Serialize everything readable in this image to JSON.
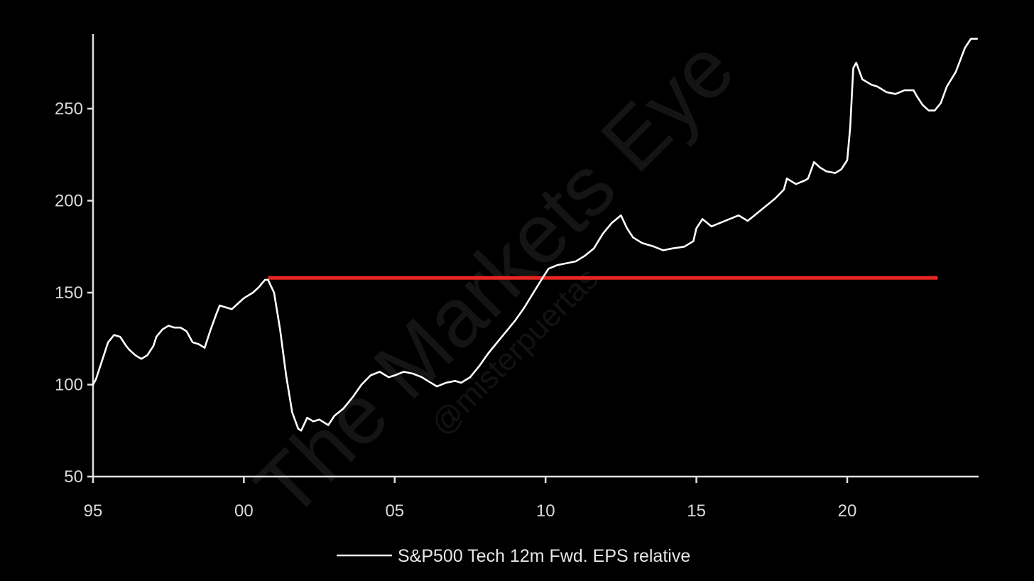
{
  "watermark": {
    "main": "The Markets Eye",
    "sub": "@misterpuertas"
  },
  "colors": {
    "background": "#000000",
    "axis": "#e0e0e0",
    "series": "#ffffff",
    "reference_line": "#e8261f"
  },
  "chart_data": {
    "type": "line",
    "title": "",
    "xlabel": "",
    "ylabel": "",
    "xlim": [
      1995.0,
      2024.4
    ],
    "ylim": [
      50,
      290
    ],
    "x_ticks": [
      1995,
      2000,
      2005,
      2010,
      2015,
      2020
    ],
    "x_tick_labels": [
      "95",
      "00",
      "05",
      "10",
      "15",
      "20"
    ],
    "y_ticks": [
      50,
      100,
      150,
      200,
      250
    ],
    "y_tick_labels": [
      "50",
      "100",
      "150",
      "200",
      "250"
    ],
    "legend": {
      "position": "bottom-center",
      "entries": [
        "S&P500 Tech 12m Fwd. EPS relative"
      ]
    },
    "grid": false,
    "series": [
      {
        "name": "S&P500 Tech 12m Fwd. EPS relative",
        "x": [
          1995.0,
          1995.1,
          1995.3,
          1995.5,
          1995.7,
          1995.9,
          1996.1,
          1996.2,
          1996.4,
          1996.6,
          1996.8,
          1997.0,
          1997.1,
          1997.3,
          1997.5,
          1997.7,
          1997.9,
          1998.1,
          1998.3,
          1998.5,
          1998.7,
          1998.8,
          1998.9,
          1999.1,
          1999.2,
          1999.4,
          1999.6,
          1999.8,
          2000.0,
          2000.3,
          2000.5,
          2000.7,
          2000.8,
          2001.0,
          2001.2,
          2001.4,
          2001.6,
          2001.8,
          2001.9,
          2002.1,
          2002.3,
          2002.5,
          2002.8,
          2003.0,
          2003.3,
          2003.6,
          2003.9,
          2004.2,
          2004.5,
          2004.8,
          2005.0,
          2005.3,
          2005.6,
          2005.9,
          2006.1,
          2006.4,
          2006.7,
          2007.0,
          2007.2,
          2007.5,
          2007.8,
          2008.1,
          2008.4,
          2008.7,
          2009.0,
          2009.3,
          2009.6,
          2009.9,
          2010.1,
          2010.4,
          2010.7,
          2011.0,
          2011.3,
          2011.6,
          2011.9,
          2012.2,
          2012.5,
          2012.7,
          2012.9,
          2013.2,
          2013.6,
          2013.9,
          2014.2,
          2014.6,
          2014.9,
          2015.0,
          2015.2,
          2015.5,
          2015.8,
          2016.1,
          2016.4,
          2016.7,
          2017.0,
          2017.3,
          2017.6,
          2017.9,
          2018.0,
          2018.3,
          2018.6,
          2018.7,
          2018.9,
          2019.1,
          2019.3,
          2019.6,
          2019.8,
          2020.0,
          2020.1,
          2020.2,
          2020.3,
          2020.5,
          2020.8,
          2021.0,
          2021.3,
          2021.6,
          2021.9,
          2022.2,
          2022.3,
          2022.5,
          2022.7,
          2022.9,
          2023.1,
          2023.3,
          2023.6,
          2023.9,
          2024.1,
          2024.3
        ],
        "y": [
          100,
          103,
          113,
          123,
          127,
          126,
          121,
          119,
          116,
          114,
          116,
          121,
          126,
          130,
          132,
          131,
          131,
          129,
          123,
          122,
          120,
          125,
          130,
          139,
          143,
          142,
          141,
          144,
          147,
          150,
          153,
          157,
          157,
          150,
          130,
          105,
          85,
          76,
          75,
          82,
          80,
          81,
          78,
          83,
          87,
          93,
          100,
          105,
          107,
          104,
          105,
          107,
          106,
          104,
          102,
          99,
          101,
          102,
          101,
          104,
          110,
          117,
          123,
          129,
          135,
          142,
          150,
          158,
          163,
          165,
          166,
          167,
          170,
          174,
          182,
          188,
          192,
          185,
          180,
          177,
          175,
          173,
          174,
          175,
          178,
          185,
          190,
          186,
          188,
          190,
          192,
          189,
          193,
          197,
          201,
          206,
          212,
          209,
          211,
          212,
          221,
          218,
          216,
          215,
          217,
          222,
          240,
          272,
          275,
          266,
          263,
          262,
          259,
          258,
          260,
          260,
          257,
          252,
          249,
          249,
          253,
          262,
          270,
          283,
          288,
          288
        ]
      }
    ],
    "reference_lines": [
      {
        "orientation": "horizontal",
        "y": 158,
        "x_range": [
          2000.8,
          2023.0
        ]
      }
    ]
  }
}
